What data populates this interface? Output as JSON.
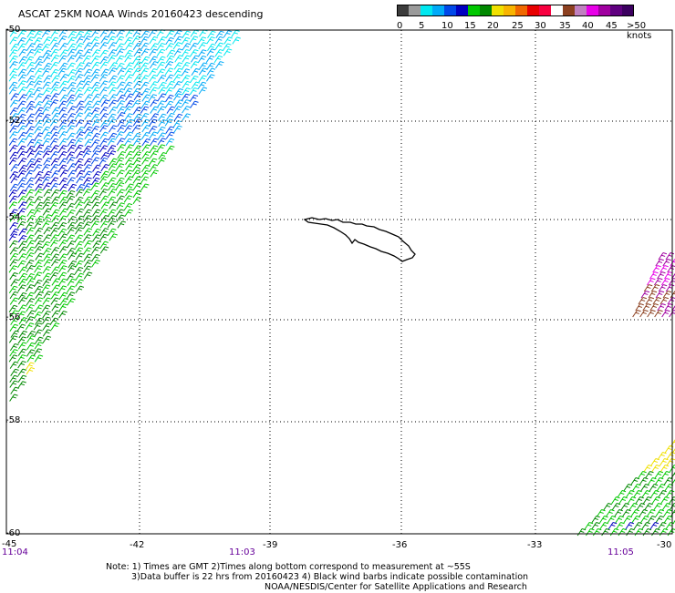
{
  "title": "ASCAT 25KM NOAA Winds 20160423 descending",
  "legend": {
    "labels": [
      "0",
      "5",
      "10",
      "15",
      "20",
      "25",
      "30",
      "35",
      "40",
      "45",
      ">50 knots"
    ],
    "colors": [
      "#3c3c3c",
      "#9a9a9a",
      "#00e8f0",
      "#00aaf8",
      "#0048e8",
      "#0000c0",
      "#00c800",
      "#008800",
      "#f0e000",
      "#f8b400",
      "#f06800",
      "#e80000",
      "#f80040",
      "#ffffff",
      "#8c4020",
      "#c080c0",
      "#e800e8",
      "#a000a0",
      "#600080",
      "#3c0060"
    ]
  },
  "map": {
    "lon_labels": [
      "-45",
      "-42",
      "-39",
      "-36",
      "-33",
      "-30"
    ],
    "lat_labels": [
      "-50",
      "-52",
      "-54",
      "-56",
      "-58",
      "-60"
    ],
    "lon_range": [
      -45,
      -30
    ],
    "lat_range": [
      -60,
      -50
    ],
    "grid": "dotted",
    "time_labels": [
      {
        "text": "11:04",
        "lon": -45
      },
      {
        "text": "11:03",
        "lon": -40.7
      },
      {
        "text": "11:05",
        "lon": -31.5
      }
    ]
  },
  "notes": {
    "line1": "Note: 1) Times are GMT 2)Times along bottom correspond to measurement at ~55S",
    "line2": "3)Data buffer is 22 hrs from 20160423 4) Black wind barbs indicate possible contamination",
    "line3": "NOAA/NESDIS/Center for Satellite Applications and Research"
  }
}
